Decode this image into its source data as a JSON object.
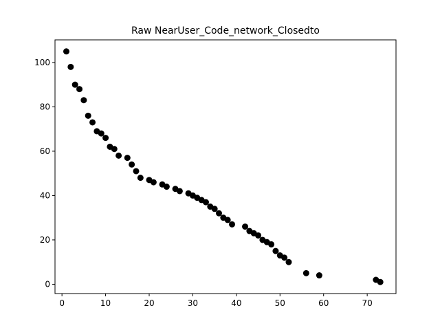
{
  "chart_data": {
    "type": "scatter",
    "title": "Raw NearUser_Code_network_Closedto",
    "xlabel": "",
    "ylabel": "",
    "xlim": [
      -1.6,
      76.6
    ],
    "ylim": [
      -4.2,
      110.2
    ],
    "xticks": [
      0,
      10,
      20,
      30,
      40,
      50,
      60,
      70
    ],
    "yticks": [
      0,
      20,
      40,
      60,
      80,
      100
    ],
    "grid": false,
    "marker_color": "#000000",
    "series": [
      {
        "x": [
          1,
          2,
          3,
          4,
          5,
          6,
          7,
          8,
          9,
          10,
          11,
          12,
          13,
          15,
          16,
          17,
          18,
          20,
          21,
          23,
          24,
          26,
          27,
          29,
          30,
          31,
          32,
          33,
          34,
          35,
          36,
          37,
          38,
          39,
          42,
          43,
          44,
          45,
          46,
          47,
          48,
          49,
          50,
          51,
          52,
          56,
          59,
          72,
          73
        ],
        "y": [
          105,
          98,
          90,
          88,
          83,
          76,
          73,
          69,
          68,
          66,
          62,
          61,
          58,
          57,
          54,
          51,
          48,
          47,
          46,
          45,
          44,
          43,
          42,
          41,
          40,
          39,
          38,
          37,
          35,
          34,
          32,
          30,
          29,
          27,
          26,
          24,
          23,
          22,
          20,
          19,
          18,
          15,
          13,
          12,
          10,
          5,
          4,
          2,
          1
        ]
      }
    ]
  }
}
